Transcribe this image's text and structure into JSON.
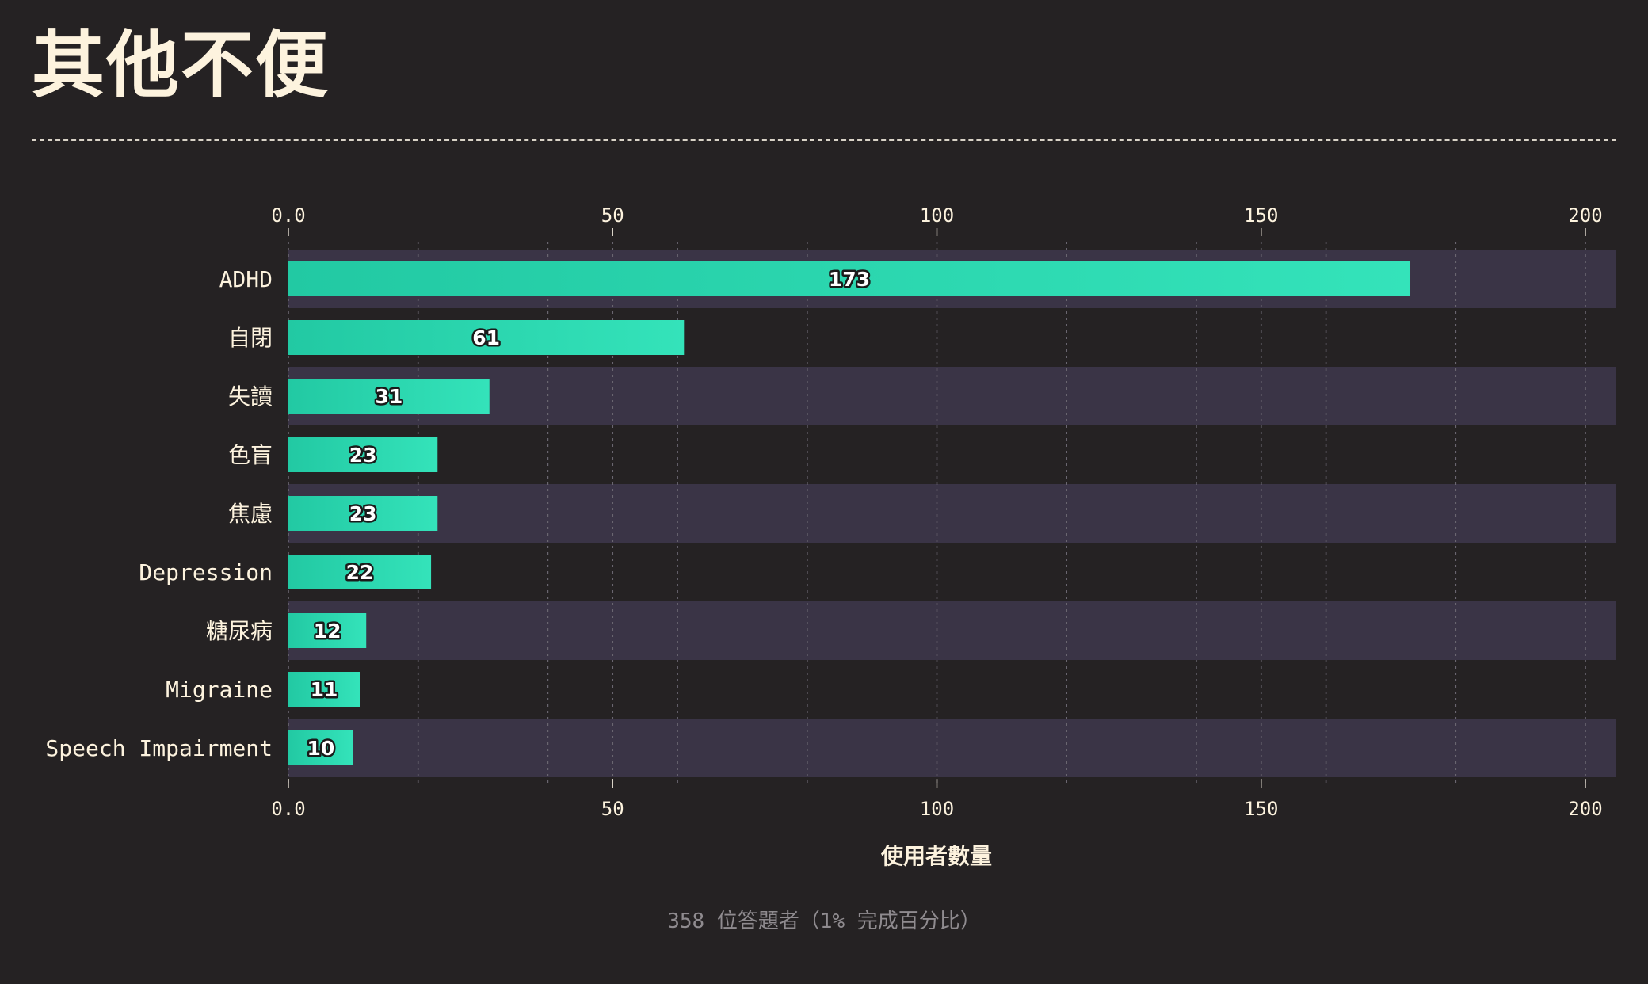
{
  "page": {
    "title": "其他不便",
    "footer": "358 位答題者（1% 完成百分比）"
  },
  "colors": {
    "background": "#252223",
    "band": "#3a3446",
    "bar_start": "#22c9a3",
    "bar_end": "#34e3ba",
    "text": "#fdf3de",
    "muted": "#8f8b8f",
    "grid": "#6a6670"
  },
  "chart_data": {
    "type": "bar",
    "orientation": "horizontal",
    "categories": [
      "ADHD",
      "自閉",
      "失讀",
      "色盲",
      "焦慮",
      "Depression",
      "糖尿病",
      "Migraine",
      "Speech Impairment"
    ],
    "values": [
      173,
      61,
      31,
      23,
      23,
      22,
      12,
      11,
      10
    ],
    "xlabel": "使用者數量",
    "xlim": [
      0,
      205
    ],
    "x_ticks": [
      0,
      50,
      100,
      150,
      200
    ],
    "x_tick_labels": [
      "0.0",
      "50",
      "100",
      "150",
      "200"
    ],
    "minor_gridlines": [
      20,
      40,
      60,
      80,
      120,
      140,
      160,
      180,
      200
    ],
    "grid": true,
    "data_labels": true
  }
}
